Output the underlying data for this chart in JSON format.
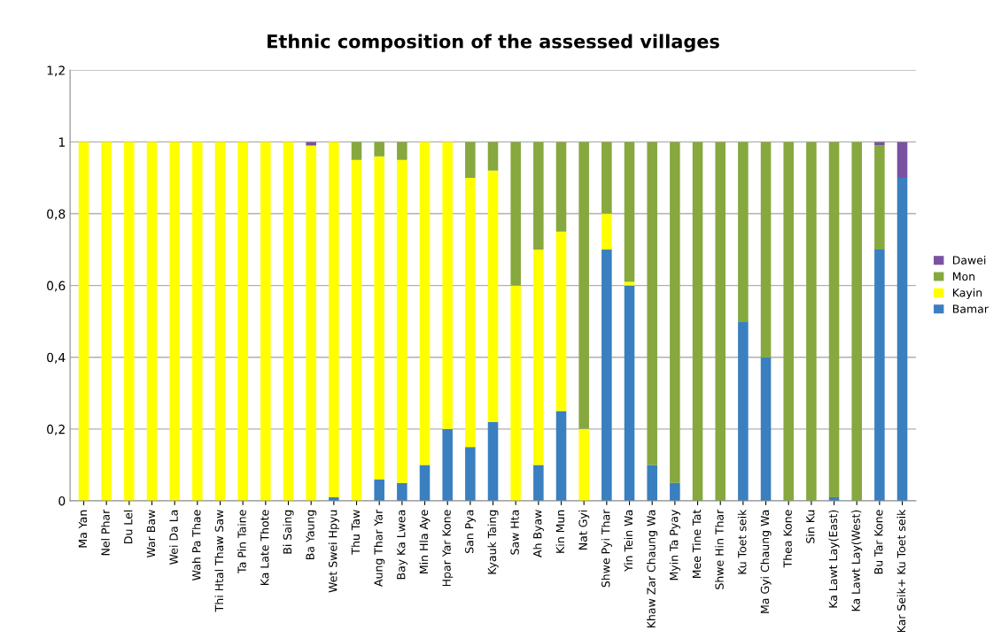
{
  "chart_data": {
    "type": "bar",
    "stacked": true,
    "title": "Ethnic composition of the assessed villages",
    "categories": [
      "Ma Yan",
      "Nel Phar",
      "Du Lel",
      "War Baw",
      "Wei Da La",
      "Wah Pa Thae",
      "Thi Htal Thaw Saw",
      "Ta Pin Taine",
      "Ka Late Thote",
      "Bi Saing",
      "Ba Yaung",
      "Wet Swei Hpyu",
      "Thu Taw",
      "Aung Thar Yar",
      "Bay Ka Lwea",
      "Min Hla Aye",
      "Hpar Yar Kone",
      "San Pya",
      "Kyauk Taing",
      "Saw Hta",
      "Ah Byaw",
      "Kin Mun",
      "Nat Gyi",
      "Shwe Pyi Thar",
      "Yin Tein Wa",
      "Khaw Zar Chaung Wa",
      "Myin Ta Pyay",
      "Mee Tine Tat",
      "Shwe Hin Thar",
      "Ku Toet seik",
      "Ma Gyi Chaung Wa",
      "Thea Kone",
      "Sin Ku",
      "Ka Lawt Lay(East)",
      "Ka Lawt Lay(West)",
      "Bu Tar Kone",
      "Kar Seik+ Ku Toet seik"
    ],
    "series": [
      {
        "name": "Bamar",
        "color": "#3a7fc0",
        "values": [
          0,
          0,
          0,
          0,
          0,
          0,
          0,
          0,
          0,
          0,
          0,
          0.01,
          0,
          0.06,
          0.05,
          0.1,
          0.2,
          0.15,
          0.22,
          0,
          0.1,
          0.25,
          0,
          0.7,
          0.6,
          0.1,
          0.05,
          0,
          0,
          0.5,
          0.4,
          0,
          0,
          0.01,
          0,
          0.7,
          0.9
        ]
      },
      {
        "name": "Kayin",
        "color": "#ffff00",
        "values": [
          1,
          1,
          1,
          1,
          1,
          1,
          1,
          1,
          1,
          1,
          0.99,
          0.99,
          0.95,
          0.9,
          0.9,
          0.9,
          0.8,
          0.75,
          0.7,
          0.6,
          0.6,
          0.5,
          0.2,
          0.1,
          0.01,
          0,
          0,
          0,
          0,
          0,
          0,
          0,
          0,
          0,
          0,
          0,
          0
        ]
      },
      {
        "name": "Mon",
        "color": "#86a83e",
        "values": [
          0,
          0,
          0,
          0,
          0,
          0,
          0,
          0,
          0,
          0,
          0,
          0,
          0.05,
          0.04,
          0.05,
          0,
          0,
          0.1,
          0.08,
          0.4,
          0.3,
          0.25,
          0.8,
          0.2,
          0.39,
          0.9,
          0.95,
          1,
          1,
          0.5,
          0.6,
          1,
          1,
          0.99,
          1,
          0.29,
          0
        ]
      },
      {
        "name": "Dawei",
        "color": "#7a52a0",
        "values": [
          0,
          0,
          0,
          0,
          0,
          0,
          0,
          0,
          0,
          0,
          0.01,
          0,
          0,
          0,
          0,
          0,
          0,
          0,
          0,
          0,
          0,
          0,
          0,
          0,
          0,
          0,
          0,
          0,
          0,
          0,
          0,
          0,
          0,
          0,
          0,
          0.01,
          0.1
        ]
      }
    ],
    "ylim": [
      0,
      1.2
    ],
    "yticks": [
      {
        "value": 0,
        "label": "0"
      },
      {
        "value": 0.2,
        "label": "0,2"
      },
      {
        "value": 0.4,
        "label": "0,4"
      },
      {
        "value": 0.6,
        "label": "0,6"
      },
      {
        "value": 0.8,
        "label": "0,8"
      },
      {
        "value": 1,
        "label": "1"
      },
      {
        "value": 1.2,
        "label": "1,2"
      }
    ],
    "grid": "y",
    "legend": "right"
  }
}
